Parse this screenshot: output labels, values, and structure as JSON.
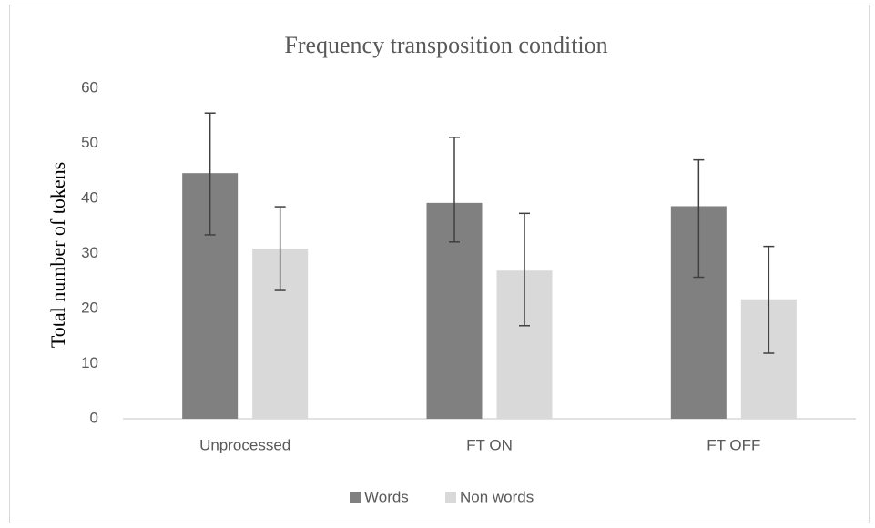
{
  "chart_data": {
    "type": "bar",
    "title": "Frequency transposition condition",
    "y_label": "Total number of tokens",
    "categories": [
      "Unprocessed",
      "FT ON",
      "FT OFF"
    ],
    "series": [
      {
        "name": "Words",
        "color": "#808080",
        "values": [
          44.6,
          39.2,
          38.6
        ],
        "error_plus": [
          10.9,
          11.9,
          8.4
        ],
        "error_minus": [
          11.2,
          7.1,
          12.9
        ]
      },
      {
        "name": "Non words",
        "color": "#d9d9d9",
        "values": [
          30.9,
          26.9,
          21.7
        ],
        "error_plus": [
          7.6,
          10.4,
          9.6
        ],
        "error_minus": [
          7.6,
          10.0,
          9.8
        ]
      }
    ],
    "ylim": [
      0,
      60
    ],
    "yticks": [
      0,
      10,
      20,
      30,
      40,
      50,
      60
    ],
    "grid": false,
    "legend": "bottom"
  }
}
